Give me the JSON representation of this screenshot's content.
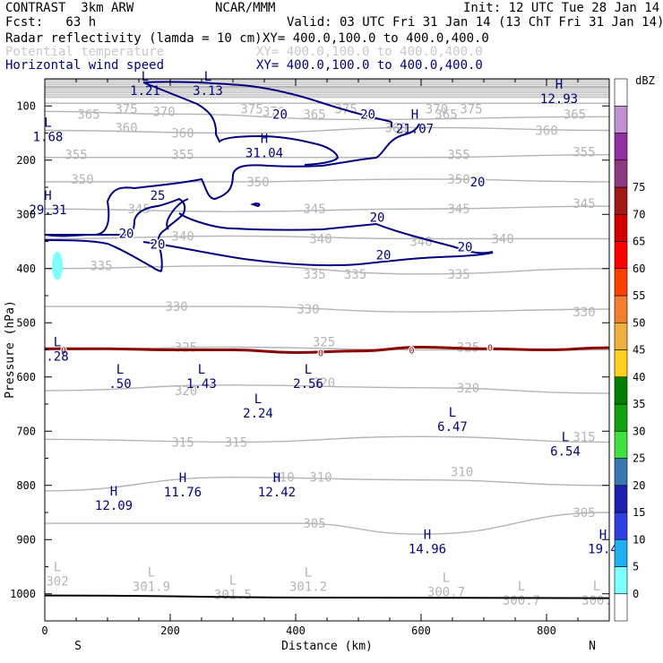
{
  "header": {
    "title": "CONTRAST  3km ARW",
    "center": "NCAR/MMM",
    "init": "Init: 12 UTC Tue 28 Jan 14",
    "fcst": "Fcst:   63 h",
    "valid": "Valid: 03 UTC Fri 31 Jan 14 (13 ChT Fri 31 Jan 14)",
    "field1": "Radar reflectivity (lamda = 10 cm)",
    "field1_xy": "XY= 400.0,100.0 to 400.0,400.0",
    "field2": "Potential temperature",
    "field2_xy": "XY= 400.0,100.0 to 400.0,400.0",
    "field3": "Horizontal wind speed",
    "field3_xy": "XY= 400.0,100.0 to 400.0,400.0"
  },
  "colors": {
    "theta": "#b4b4b4",
    "wind": "#000080",
    "zero_line": "#8b0000"
  },
  "chart_data": {
    "type": "cross-section",
    "xlabel": "Distance (km)",
    "ylabel": "Pressure (hPa)",
    "xlim": [
      0,
      900
    ],
    "ylim": [
      1050,
      50
    ],
    "x_ticks": [
      0,
      200,
      400,
      600,
      800
    ],
    "y_ticks": [
      100,
      200,
      300,
      400,
      500,
      600,
      700,
      800,
      900,
      1000
    ],
    "endpoint_labels": {
      "left": "S",
      "right": "N"
    },
    "legend": {
      "unit": "dBZ",
      "levels": [
        0,
        5,
        10,
        15,
        20,
        25,
        30,
        35,
        40,
        45,
        50,
        55,
        60,
        65,
        70,
        75
      ],
      "colors": [
        "#ffffff",
        "#80ffff",
        "#20b0f0",
        "#3040e0",
        "#2020b0",
        "#3878b0",
        "#40e040",
        "#10a010",
        "#008000",
        "#ffd020",
        "#f0b040",
        "#f08030",
        "#ff4000",
        "#ff0000",
        "#d00000",
        "#a01818",
        "#8e3880",
        "#9030a0",
        "#c090d0",
        "#ffffff"
      ]
    },
    "theta_contours": [
      {
        "value": 375,
        "points": [
          [
            0,
            65
          ],
          [
            900,
            65
          ]
        ],
        "labels": [
          [
            130,
            105
          ],
          [
            330,
            105
          ],
          [
            480,
            105
          ],
          [
            680,
            105
          ]
        ]
      },
      {
        "value": 370,
        "points": [
          [
            0,
            95
          ],
          [
            900,
            95
          ]
        ],
        "labels": [
          [
            190,
            110
          ],
          [
            365,
            110
          ],
          [
            625,
            105
          ]
        ]
      },
      {
        "value": 365,
        "points": [
          [
            0,
            110
          ],
          [
            200,
            115
          ],
          [
            500,
            125
          ],
          [
            900,
            120
          ]
        ],
        "labels": [
          [
            70,
            115
          ],
          [
            430,
            115
          ],
          [
            640,
            115
          ],
          [
            845,
            115
          ]
        ]
      },
      {
        "value": 360,
        "points": [
          [
            0,
            145
          ],
          [
            300,
            150
          ],
          [
            600,
            140
          ],
          [
            900,
            145
          ]
        ],
        "labels": [
          [
            130,
            140
          ],
          [
            220,
            150
          ],
          [
            560,
            140
          ],
          [
            800,
            145
          ]
        ]
      },
      {
        "value": 355,
        "points": [
          [
            0,
            195
          ],
          [
            300,
            195
          ],
          [
            600,
            195
          ],
          [
            900,
            190
          ]
        ],
        "labels": [
          [
            50,
            190
          ],
          [
            220,
            190
          ],
          [
            660,
            190
          ],
          [
            860,
            185
          ]
        ]
      },
      {
        "value": 350,
        "points": [
          [
            0,
            240
          ],
          [
            300,
            240
          ],
          [
            600,
            235
          ],
          [
            900,
            240
          ]
        ],
        "labels": [
          [
            60,
            235
          ],
          [
            340,
            240
          ],
          [
            660,
            235
          ]
        ]
      },
      {
        "value": 345,
        "points": [
          [
            0,
            290
          ],
          [
            300,
            295
          ],
          [
            600,
            290
          ],
          [
            900,
            285
          ]
        ],
        "labels": [
          [
            150,
            290
          ],
          [
            430,
            290
          ],
          [
            660,
            290
          ],
          [
            860,
            280
          ]
        ]
      },
      {
        "value": 340,
        "points": [
          [
            0,
            345
          ],
          [
            300,
            340
          ],
          [
            600,
            345
          ],
          [
            900,
            345
          ]
        ],
        "labels": [
          [
            220,
            340
          ],
          [
            440,
            345
          ],
          [
            600,
            350
          ],
          [
            730,
            345
          ]
        ]
      },
      {
        "value": 335,
        "points": [
          [
            0,
            400
          ],
          [
            300,
            395
          ],
          [
            600,
            410
          ],
          [
            900,
            400
          ]
        ],
        "labels": [
          [
            90,
            395
          ],
          [
            430,
            410
          ],
          [
            495,
            410
          ],
          [
            660,
            410
          ]
        ]
      },
      {
        "value": 330,
        "points": [
          [
            0,
            470
          ],
          [
            300,
            470
          ],
          [
            600,
            480
          ],
          [
            900,
            475
          ]
        ],
        "labels": [
          [
            210,
            470
          ],
          [
            420,
            475
          ],
          [
            860,
            480
          ]
        ]
      },
      {
        "value": 325,
        "points": [
          [
            0,
            550
          ],
          [
            300,
            545
          ],
          [
            600,
            550
          ],
          [
            900,
            550
          ]
        ],
        "labels": [
          [
            225,
            545
          ],
          [
            445,
            535
          ],
          [
            675,
            545
          ]
        ]
      },
      {
        "value": 320,
        "points": [
          [
            0,
            625
          ],
          [
            300,
            615
          ],
          [
            600,
            620
          ],
          [
            900,
            630
          ]
        ],
        "labels": [
          [
            225,
            625
          ],
          [
            445,
            610
          ],
          [
            675,
            620
          ]
        ]
      },
      {
        "value": 315,
        "points": [
          [
            0,
            715
          ],
          [
            300,
            720
          ],
          [
            600,
            710
          ],
          [
            900,
            720
          ]
        ],
        "labels": [
          [
            220,
            720
          ],
          [
            305,
            720
          ],
          [
            860,
            710
          ]
        ]
      },
      {
        "value": 310,
        "points": [
          [
            0,
            810
          ],
          [
            300,
            785
          ],
          [
            600,
            790
          ],
          [
            900,
            800
          ]
        ],
        "labels": [
          [
            380,
            785
          ],
          [
            440,
            785
          ],
          [
            665,
            775
          ]
        ]
      },
      {
        "value": 305,
        "points": [
          [
            0,
            870
          ],
          [
            400,
            870
          ],
          [
            600,
            890
          ],
          [
            900,
            850
          ]
        ],
        "labels": [
          [
            430,
            870
          ],
          [
            860,
            850
          ]
        ]
      }
    ],
    "wind_contours": [
      {
        "value": 20,
        "labels": [
          [
            375,
            115
          ],
          [
            515,
            115
          ],
          [
            690,
            240
          ],
          [
            530,
            305
          ],
          [
            130,
            335
          ],
          [
            180,
            355
          ],
          [
            540,
            375
          ],
          [
            670,
            360
          ]
        ]
      },
      {
        "value": 25,
        "labels": [
          [
            180,
            265
          ]
        ]
      }
    ],
    "wind_extrema": [
      {
        "type": "L",
        "value": "1.21",
        "x": 160,
        "p": 60
      },
      {
        "type": "L",
        "value": "3.13",
        "x": 260,
        "p": 60
      },
      {
        "type": "H",
        "value": "12.93",
        "x": 820,
        "p": 75
      },
      {
        "type": "H",
        "value": "21.07",
        "x": 590,
        "p": 130
      },
      {
        "type": "H",
        "value": "31.04",
        "x": 350,
        "p": 175
      },
      {
        "type": "H",
        "value": "29.31",
        "x": 5,
        "p": 280
      },
      {
        "type": "L",
        "value": "1.68",
        "x": 5,
        "p": 145
      },
      {
        "type": "L",
        "value": ".28",
        "x": 20,
        "p": 550
      },
      {
        "type": "L",
        "value": ".50",
        "x": 120,
        "p": 600
      },
      {
        "type": "L",
        "value": "1.43",
        "x": 250,
        "p": 600
      },
      {
        "type": "L",
        "value": "2.56",
        "x": 420,
        "p": 600
      },
      {
        "type": "L",
        "value": "2.24",
        "x": 340,
        "p": 655
      },
      {
        "type": "L",
        "value": "6.47",
        "x": 650,
        "p": 680
      },
      {
        "type": "L",
        "value": "6.54",
        "x": 830,
        "p": 725
      },
      {
        "type": "H",
        "value": "11.76",
        "x": 220,
        "p": 800
      },
      {
        "type": "H",
        "value": "12.42",
        "x": 370,
        "p": 800
      },
      {
        "type": "H",
        "value": "12.09",
        "x": 110,
        "p": 825
      },
      {
        "type": "H",
        "value": "14.96",
        "x": 610,
        "p": 905
      },
      {
        "type": "H",
        "value": "19.4",
        "x": 890,
        "p": 905
      },
      {
        "type": "L",
        "value": "302",
        "x": 20,
        "p": 965
      },
      {
        "type": "L",
        "value": "301.9",
        "x": 170,
        "p": 975
      },
      {
        "type": "L",
        "value": "301.5",
        "x": 300,
        "p": 990
      },
      {
        "type": "L",
        "value": "301.2",
        "x": 420,
        "p": 975
      },
      {
        "type": "L",
        "value": "300.7",
        "x": 640,
        "p": 985
      },
      {
        "type": "L",
        "value": "300.7",
        "x": 760,
        "p": 1000
      },
      {
        "type": "L",
        "value": "300.",
        "x": 880,
        "p": 1000
      }
    ],
    "zero_contour": {
      "value": 0,
      "points": [
        [
          0,
          548
        ],
        [
          100,
          548
        ],
        [
          200,
          550
        ],
        [
          300,
          550
        ],
        [
          400,
          555
        ],
        [
          500,
          552
        ],
        [
          600,
          545
        ],
        [
          700,
          548
        ],
        [
          800,
          550
        ],
        [
          900,
          546
        ]
      ],
      "labels": [
        [
          30,
          550
        ],
        [
          440,
          555
        ],
        [
          585,
          550
        ],
        [
          710,
          545
        ]
      ]
    },
    "echo_cell": {
      "dbz": 5,
      "x": 20,
      "p": 395
    },
    "terrain": {
      "points": [
        [
          0,
          1003
        ],
        [
          450,
          1007
        ],
        [
          900,
          1008
        ]
      ]
    }
  }
}
